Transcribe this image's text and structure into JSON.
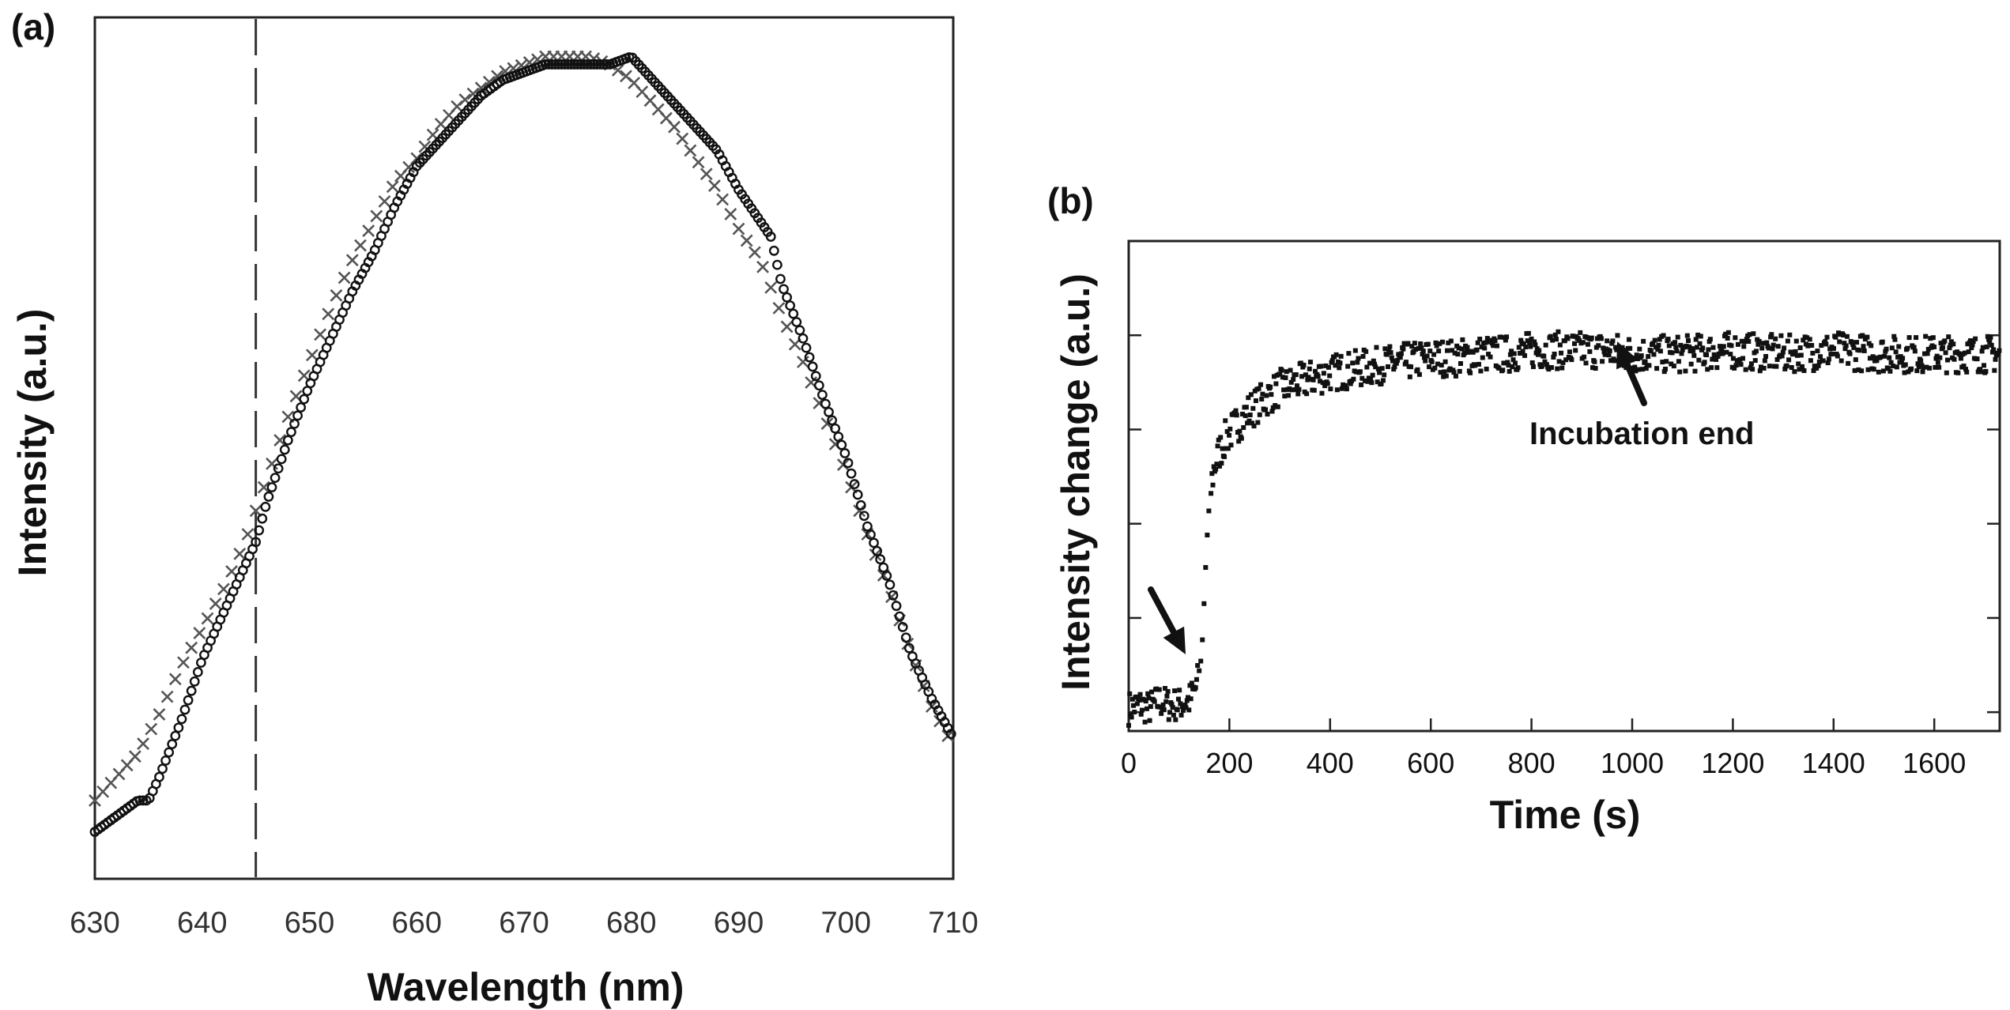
{
  "chart_data": [
    {
      "panel": "(a)",
      "type": "scatter",
      "title": "",
      "xlabel": "Wavelength (nm)",
      "ylabel": "Intensity (a.u.)",
      "xlim": [
        630,
        710
      ],
      "ylim": [
        0,
        1.1
      ],
      "xticks": [
        "630",
        "640",
        "650",
        "660",
        "670",
        "680",
        "690",
        "700",
        "710"
      ],
      "reference_line": {
        "x": 645,
        "style": "dashed"
      },
      "series": [
        {
          "name": "circles",
          "marker": "o",
          "x": [
            630,
            632,
            634,
            635,
            636,
            638,
            640,
            642,
            644,
            645,
            646,
            648,
            650,
            652,
            654,
            656,
            658,
            660,
            662,
            664,
            666,
            668,
            670,
            672,
            674,
            676,
            678,
            680,
            682,
            684,
            686,
            688,
            690,
            692,
            693,
            694,
            696,
            698,
            700,
            702,
            704,
            706,
            708,
            710
          ],
          "y": [
            0.06,
            0.08,
            0.1,
            0.1,
            0.13,
            0.2,
            0.28,
            0.34,
            0.4,
            0.43,
            0.48,
            0.56,
            0.63,
            0.69,
            0.75,
            0.8,
            0.86,
            0.91,
            0.94,
            0.97,
            1.0,
            1.02,
            1.03,
            1.04,
            1.04,
            1.04,
            1.04,
            1.05,
            1.02,
            0.99,
            0.96,
            0.93,
            0.88,
            0.84,
            0.82,
            0.76,
            0.69,
            0.61,
            0.54,
            0.45,
            0.38,
            0.29,
            0.23,
            0.18
          ]
        },
        {
          "name": "crosses",
          "marker": "x",
          "x": [
            630,
            632,
            634,
            636,
            638,
            640,
            642,
            644,
            646,
            648,
            650,
            652,
            654,
            656,
            658,
            660,
            662,
            664,
            666,
            668,
            670,
            672,
            674,
            676,
            678,
            680,
            682,
            684,
            686,
            688,
            690,
            692,
            694,
            696,
            698,
            700,
            702,
            704,
            706,
            708,
            710
          ],
          "y": [
            0.1,
            0.13,
            0.16,
            0.21,
            0.27,
            0.32,
            0.37,
            0.43,
            0.51,
            0.59,
            0.66,
            0.73,
            0.79,
            0.84,
            0.89,
            0.92,
            0.96,
            0.99,
            1.01,
            1.03,
            1.04,
            1.05,
            1.05,
            1.05,
            1.04,
            1.02,
            0.99,
            0.96,
            0.92,
            0.88,
            0.83,
            0.79,
            0.72,
            0.66,
            0.59,
            0.52,
            0.44,
            0.37,
            0.29,
            0.22,
            0.17
          ]
        }
      ]
    },
    {
      "panel": "(b)",
      "type": "scatter",
      "title": "",
      "xlabel": "Time (s)",
      "ylabel": "Intensity change (a.u.)",
      "xlim": [
        0,
        1730
      ],
      "ylim": [
        0,
        1.3
      ],
      "xticks": [
        "0",
        "200",
        "400",
        "600",
        "800",
        "1000",
        "1200",
        "1400",
        "1600"
      ],
      "x": [
        0,
        20,
        40,
        60,
        80,
        100,
        120,
        135,
        145,
        150,
        155,
        160,
        165,
        170,
        180,
        190,
        200,
        220,
        240,
        260,
        280,
        300,
        350,
        400,
        450,
        500,
        550,
        600,
        650,
        700,
        750,
        800,
        850,
        900,
        950,
        1000,
        1100,
        1200,
        1300,
        1400,
        1500,
        1600,
        1700,
        1730
      ],
      "y": [
        0.06,
        0.07,
        0.06,
        0.08,
        0.07,
        0.07,
        0.08,
        0.12,
        0.2,
        0.35,
        0.5,
        0.6,
        0.66,
        0.7,
        0.74,
        0.77,
        0.79,
        0.82,
        0.85,
        0.87,
        0.89,
        0.91,
        0.93,
        0.95,
        0.96,
        0.97,
        0.98,
        0.99,
        0.99,
        1.0,
        1.0,
        1.01,
        1.01,
        1.01,
        1.01,
        1.0,
        1.0,
        1.01,
        1.0,
        1.01,
        1.0,
        1.0,
        1.0,
        1.0
      ],
      "annotations": [
        {
          "text": "",
          "target_x": 130,
          "target_y": 0.07
        },
        {
          "text": "Incubation end",
          "target_x": 1000,
          "target_y": 0.99
        }
      ]
    }
  ]
}
